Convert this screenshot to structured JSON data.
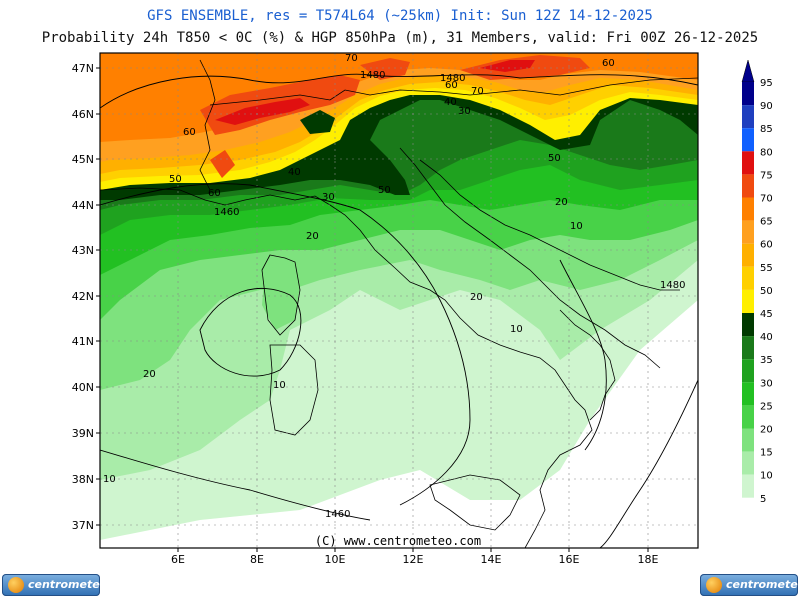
{
  "header": {
    "line1": "GFS ENSEMBLE, res = T574L64 (~25km)   Init: Sun 12Z 14-12-2025",
    "line2": "Probability 24h T850 < 0C (%) & HGP 850hPa (m), 31 Members, valid: Fri 00Z 26-12-2025"
  },
  "map": {
    "lon_ticks": [
      "6E",
      "8E",
      "10E",
      "12E",
      "14E",
      "16E",
      "18E"
    ],
    "lat_ticks": [
      "47N",
      "46N",
      "45N",
      "44N",
      "43N",
      "42N",
      "41N",
      "40N",
      "39N",
      "38N",
      "37N"
    ],
    "copyright": "(C) www.centrometeo.com",
    "contour_labels": [
      "70",
      "1480",
      "1480",
      "60",
      "70",
      "40",
      "60",
      "30",
      "60",
      "50",
      "50",
      "60",
      "40",
      "1460",
      "30",
      "50",
      "20",
      "20",
      "10",
      "1480",
      "20",
      "10",
      "20",
      "10",
      "1460",
      "10"
    ]
  },
  "legend": {
    "levels": [
      "95",
      "90",
      "85",
      "80",
      "75",
      "70",
      "65",
      "60",
      "55",
      "50",
      "45",
      "40",
      "35",
      "30",
      "25",
      "20",
      "15",
      "10",
      "5"
    ],
    "colors": [
      "#00008b",
      "#1f3fbf",
      "#1060ff",
      "#e01010",
      "#f04a10",
      "#ff8000",
      "#ffa020",
      "#ffb000",
      "#ffd000",
      "#ffef00",
      "#003a00",
      "#1a7a1a",
      "#1fa21f",
      "#22c022",
      "#48d248",
      "#7ee27e",
      "#a9eca9",
      "#cff5cf",
      "#ffffff"
    ]
  },
  "footer": {
    "logo_left": "centrometeo",
    "logo_right": "centrometeo"
  }
}
